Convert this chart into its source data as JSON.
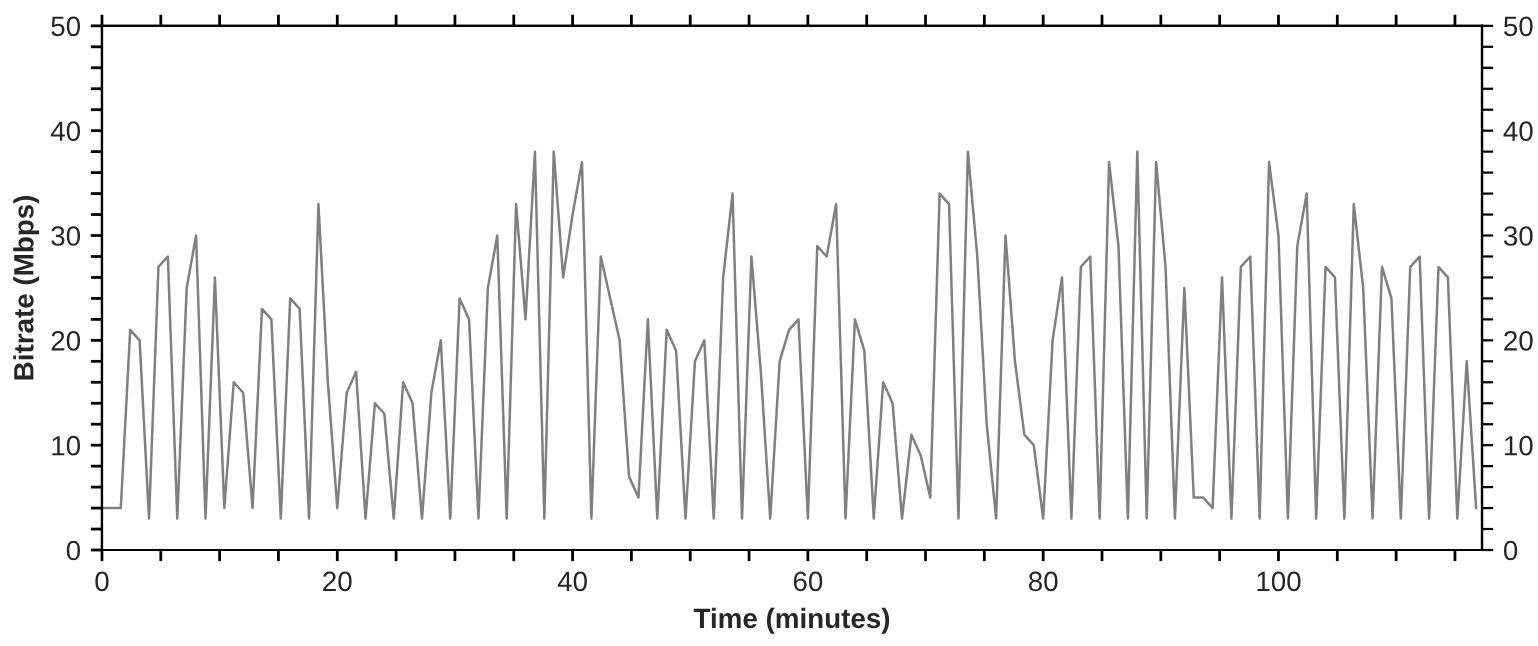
{
  "chart_data": {
    "type": "line",
    "xlabel": "Time (minutes)",
    "ylabel": "Bitrate (Mbps)",
    "xlim": [
      0,
      117.3
    ],
    "ylim": [
      0,
      50
    ],
    "y2lim": [
      0,
      50
    ],
    "xticks": [
      0,
      {
        "value": 5,
        "label": null
      },
      {
        "value": 10,
        "label": null
      },
      {
        "value": 15,
        "label": null
      },
      20,
      {
        "value": 25,
        "label": null
      },
      {
        "value": 30,
        "label": null
      },
      {
        "value": 35,
        "label": null
      },
      40,
      {
        "value": 45,
        "label": null
      },
      {
        "value": 50,
        "label": null
      },
      {
        "value": 55,
        "label": null
      },
      60,
      {
        "value": 65,
        "label": null
      },
      {
        "value": 70,
        "label": null
      },
      {
        "value": 75,
        "label": null
      },
      80,
      {
        "value": 85,
        "label": null
      },
      {
        "value": 90,
        "label": null
      },
      {
        "value": 95,
        "label": null
      },
      100,
      {
        "value": 105,
        "label": null
      },
      {
        "value": 110,
        "label": null
      },
      {
        "value": 115,
        "label": null
      }
    ],
    "yticks": [
      0,
      {
        "value": 2,
        "label": null
      },
      {
        "value": 4,
        "label": null
      },
      {
        "value": 6,
        "label": null
      },
      {
        "value": 8,
        "label": null
      },
      10,
      {
        "value": 12,
        "label": null
      },
      {
        "value": 14,
        "label": null
      },
      {
        "value": 16,
        "label": null
      },
      {
        "value": 18,
        "label": null
      },
      20,
      {
        "value": 22,
        "label": null
      },
      {
        "value": 24,
        "label": null
      },
      {
        "value": 26,
        "label": null
      },
      {
        "value": 28,
        "label": null
      },
      30,
      {
        "value": 32,
        "label": null
      },
      {
        "value": 34,
        "label": null
      },
      {
        "value": 36,
        "label": null
      },
      {
        "value": 38,
        "label": null
      },
      40,
      {
        "value": 42,
        "label": null
      },
      {
        "value": 44,
        "label": null
      },
      {
        "value": 46,
        "label": null
      },
      {
        "value": 48,
        "label": null
      },
      50
    ],
    "y2ticks": [
      0,
      {
        "value": 2,
        "label": null
      },
      {
        "value": 4,
        "label": null
      },
      {
        "value": 6,
        "label": null
      },
      {
        "value": 8,
        "label": null
      },
      10,
      {
        "value": 12,
        "label": null
      },
      {
        "value": 14,
        "label": null
      },
      {
        "value": 16,
        "label": null
      },
      {
        "value": 18,
        "label": null
      },
      20,
      {
        "value": 22,
        "label": null
      },
      {
        "value": 24,
        "label": null
      },
      {
        "value": 26,
        "label": null
      },
      {
        "value": 28,
        "label": null
      },
      30,
      {
        "value": 32,
        "label": null
      },
      {
        "value": 34,
        "label": null
      },
      {
        "value": 36,
        "label": null
      },
      {
        "value": 38,
        "label": null
      },
      40,
      {
        "value": 42,
        "label": null
      },
      {
        "value": 44,
        "label": null
      },
      {
        "value": 46,
        "label": null
      },
      {
        "value": 48,
        "label": null
      },
      50
    ],
    "grid": false,
    "marker": "none",
    "line_style": "solid",
    "x": [
      0,
      0.8,
      1.6,
      2.4,
      3.2,
      4.0,
      4.8,
      5.6,
      6.4,
      7.2,
      8,
      8.8,
      9.6,
      10.4,
      11.2,
      12,
      12.8,
      13.6,
      14.4,
      15.2,
      16,
      16.8,
      17.6,
      18.4,
      19.2,
      20,
      20.8,
      21.6,
      22.4,
      23.2,
      24,
      24.8,
      25.6,
      26.4,
      27.2,
      28,
      28.8,
      29.6,
      30.4,
      31.2,
      32,
      32.8,
      33.6,
      34.4,
      35.2,
      36,
      36.8,
      37.6,
      38.4,
      39.2,
      40,
      40.8,
      41.6,
      42.4,
      43.2,
      44,
      44.8,
      45.6,
      46.4,
      47.2,
      48,
      48.8,
      49.6,
      50.4,
      51.2,
      52,
      52.8,
      53.6,
      54.4,
      55.2,
      56,
      56.8,
      57.6,
      58.4,
      59.2,
      60,
      60.8,
      61.6,
      62.4,
      63.2,
      64,
      64.8,
      65.6,
      66.4,
      67.2,
      68,
      68.8,
      69.6,
      70.4,
      71.2,
      72,
      72.8,
      73.6,
      74.4,
      75.2,
      76,
      76.8,
      77.6,
      78.4,
      79.2,
      80,
      80.8,
      81.6,
      82.4,
      83.2,
      84,
      84.8,
      85.6,
      86.4,
      87.2,
      88,
      88.8,
      89.6,
      90.4,
      91.2,
      92,
      92.8,
      93.6,
      94.4,
      95.2,
      96,
      96.8,
      97.6,
      98.4,
      99.2,
      100,
      100.8,
      101.6,
      102.4,
      103.2,
      104,
      104.8,
      105.6,
      106.4,
      107.2,
      108,
      108.8,
      109.6,
      110.4,
      111.2,
      112,
      112.8,
      113.6,
      114.4,
      115.2,
      116,
      116.8
    ],
    "series": [
      {
        "color": "#808080",
        "values": [
          4,
          4,
          4,
          21,
          20,
          3,
          27,
          28,
          3,
          25,
          30,
          3,
          26,
          4,
          16,
          15,
          4,
          23,
          22,
          3,
          24,
          23,
          3,
          33,
          16,
          4,
          15,
          17,
          3,
          14,
          13,
          3,
          16,
          14,
          3,
          15,
          20,
          3,
          24,
          22,
          3,
          25,
          30,
          3,
          33,
          22,
          38,
          3,
          38,
          26,
          32,
          37,
          3,
          28,
          24,
          20,
          7,
          5,
          22,
          3,
          21,
          19,
          3,
          18,
          20,
          3,
          26,
          34,
          3,
          28,
          17,
          3,
          18,
          21,
          22,
          3,
          29,
          28,
          33,
          3,
          22,
          19,
          3,
          16,
          14,
          3,
          11,
          9,
          5,
          34,
          33,
          3,
          38,
          28,
          12,
          3,
          30,
          18,
          11,
          10,
          3,
          20,
          26,
          3,
          27,
          28,
          3,
          37,
          29,
          3,
          38,
          3,
          37,
          27,
          3,
          25,
          5,
          5,
          4,
          26,
          3,
          27,
          28,
          3,
          37,
          30,
          3,
          29,
          34,
          3,
          27,
          26,
          3,
          33,
          25,
          3,
          27,
          24,
          3,
          27,
          28,
          3,
          27,
          26,
          3,
          18,
          4
        ]
      }
    ]
  }
}
